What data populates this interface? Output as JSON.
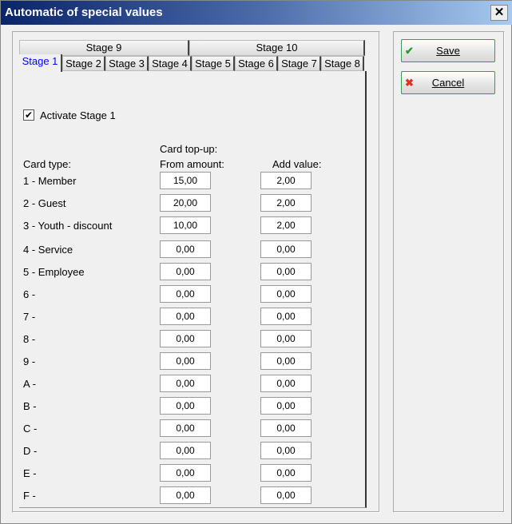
{
  "window": {
    "title": "Automatic of special values",
    "close": "✕"
  },
  "tabs_row1": [
    "Stage 9",
    "Stage 10"
  ],
  "tabs_row2": [
    "Stage 1",
    "Stage 2",
    "Stage 3",
    "Stage 4",
    "Stage 5",
    "Stage 6",
    "Stage 7",
    "Stage 8"
  ],
  "active_tab": "Stage 1",
  "activate": {
    "label": "Activate Stage 1",
    "checked": true,
    "mark": "✔"
  },
  "headers": {
    "card_type": "Card type:",
    "topup": "Card top-up:",
    "from_amount": "From amount:",
    "add_value": "Add value:"
  },
  "rows": [
    {
      "type": "1 - Member",
      "from": "15,00",
      "add": "2,00"
    },
    {
      "type": "2 - Guest",
      "from": "20,00",
      "add": "2,00"
    },
    {
      "type": "3 - Youth - discount",
      "from": "10,00",
      "add": "2,00"
    },
    {
      "type": "4 - Service",
      "from": "0,00",
      "add": "0,00"
    },
    {
      "type": "5 - Employee",
      "from": "0,00",
      "add": "0,00"
    },
    {
      "type": "6 -",
      "from": "0,00",
      "add": "0,00"
    },
    {
      "type": "7 -",
      "from": "0,00",
      "add": "0,00"
    },
    {
      "type": "8 -",
      "from": "0,00",
      "add": "0,00"
    },
    {
      "type": "9 -",
      "from": "0,00",
      "add": "0,00"
    },
    {
      "type": "A -",
      "from": "0,00",
      "add": "0,00"
    },
    {
      "type": "B -",
      "from": "0,00",
      "add": "0,00"
    },
    {
      "type": "C -",
      "from": "0,00",
      "add": "0,00"
    },
    {
      "type": "D -",
      "from": "0,00",
      "add": "0,00"
    },
    {
      "type": "E -",
      "from": "0,00",
      "add": "0,00"
    },
    {
      "type": "F -",
      "from": "0,00",
      "add": "0,00"
    }
  ],
  "buttons": {
    "save": "Save",
    "cancel": "Cancel",
    "save_icon": "✔",
    "cancel_icon": "✖"
  },
  "colors": {
    "save_icon": "#2a9a2a",
    "cancel_icon": "#e03020",
    "active_tab": "#0000ff"
  }
}
